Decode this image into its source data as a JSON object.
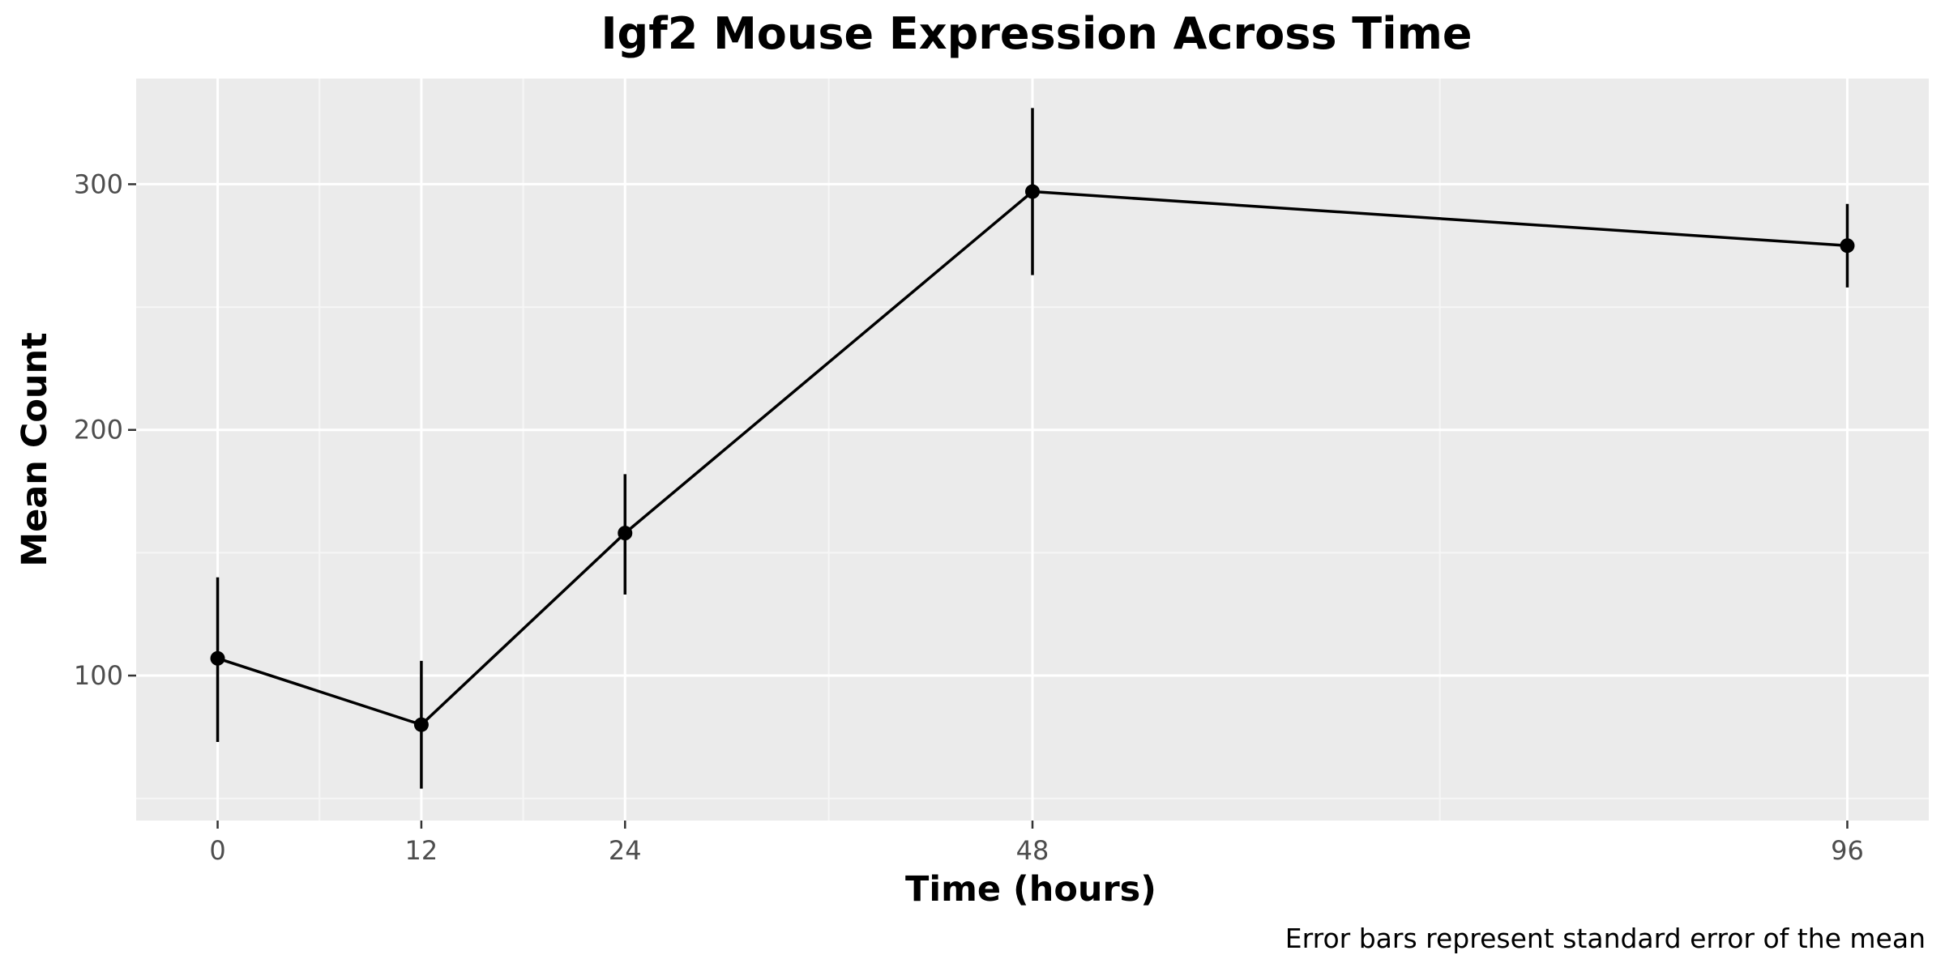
{
  "chart_data": {
    "type": "line",
    "title": "Igf2 Mouse Expression Across Time",
    "xlabel": "Time (hours)",
    "ylabel": "Mean Count",
    "caption": "Error bars represent standard error of the mean",
    "x": [
      0,
      12,
      24,
      48,
      96
    ],
    "x_tick_labels": [
      "0",
      "12",
      "24",
      "48",
      "96"
    ],
    "xlim": [
      -4.8,
      100.8
    ],
    "y_ticks": [
      100,
      200,
      300
    ],
    "y_tick_labels": [
      "100",
      "200",
      "300"
    ],
    "ylim": [
      41,
      343
    ],
    "grid": true,
    "series": [
      {
        "values": [
          107,
          80,
          158,
          297,
          275
        ],
        "error_lower": [
          73,
          54,
          133,
          263,
          258
        ],
        "error_upper": [
          140,
          106,
          182,
          331,
          292
        ]
      }
    ],
    "colors": {
      "panel_background": "#ebebeb",
      "grid_major": "#ffffff",
      "grid_minor": "#f6f6f6",
      "line": "#000000",
      "tick_label": "#4d4d4d"
    }
  }
}
